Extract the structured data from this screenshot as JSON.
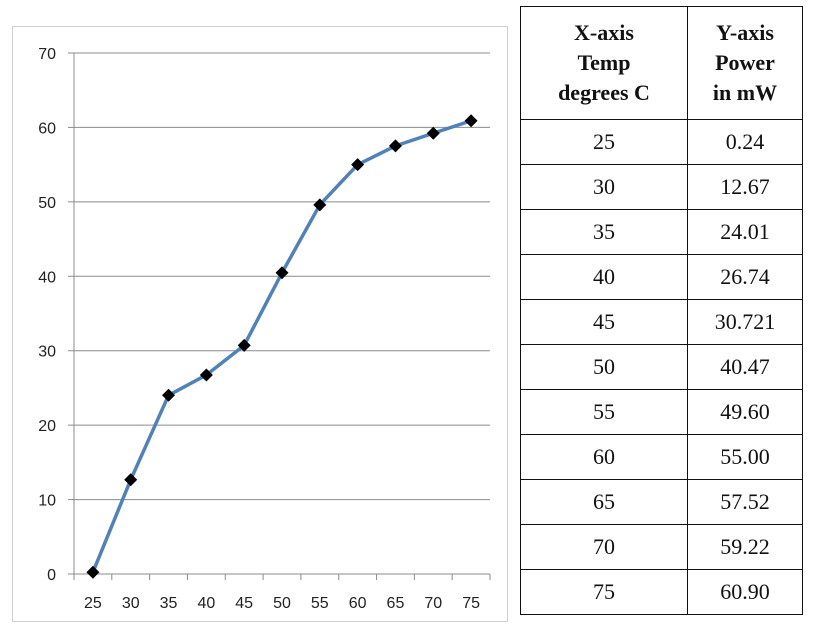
{
  "chart_data": {
    "type": "line",
    "title": "",
    "xlabel": "",
    "ylabel": "",
    "categories": [
      "25",
      "30",
      "35",
      "40",
      "45",
      "50",
      "55",
      "60",
      "65",
      "70",
      "75"
    ],
    "series": [
      {
        "values": [
          0.24,
          12.67,
          24.01,
          26.74,
          30.721,
          40.47,
          49.6,
          55.0,
          57.52,
          59.22,
          60.9
        ]
      }
    ],
    "yticks": [
      "0",
      "10",
      "20",
      "30",
      "40",
      "50",
      "60",
      "70"
    ],
    "ylim": [
      0,
      70
    ],
    "grid": true,
    "line_color": "#4f81bd",
    "marker_color": "#000000",
    "marker": "diamond"
  },
  "table": {
    "headers": [
      [
        "X-axis",
        "Temp",
        "degrees C"
      ],
      [
        "Y-axis",
        "Power",
        "in mW"
      ]
    ],
    "rows": [
      [
        "25",
        "0.24"
      ],
      [
        "30",
        "12.67"
      ],
      [
        "35",
        "24.01"
      ],
      [
        "40",
        "26.74"
      ],
      [
        "45",
        "30.721"
      ],
      [
        "50",
        "40.47"
      ],
      [
        "55",
        "49.60"
      ],
      [
        "60",
        "55.00"
      ],
      [
        "65",
        "57.52"
      ],
      [
        "70",
        "59.22"
      ],
      [
        "75",
        "60.90"
      ]
    ]
  }
}
